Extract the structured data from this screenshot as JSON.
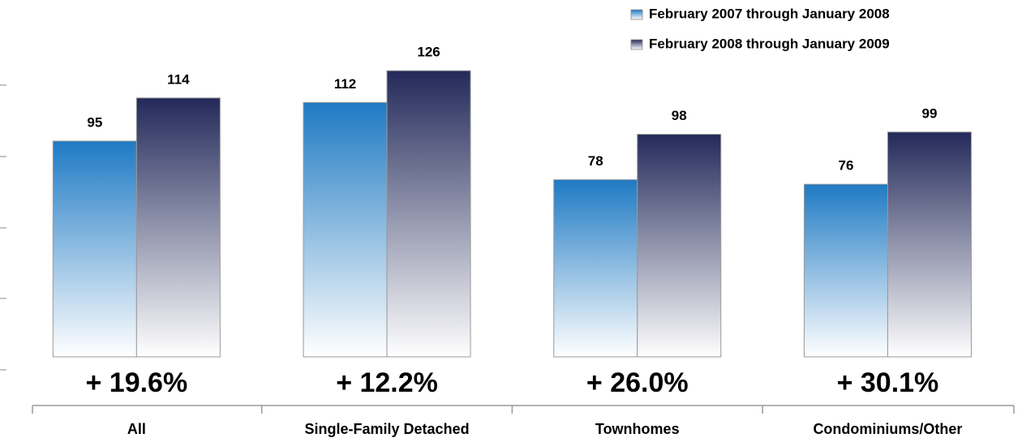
{
  "chart_data": {
    "type": "bar",
    "categories": [
      "All",
      "Single-Family Detached",
      "Townhomes",
      "Condominiums/Other"
    ],
    "series": [
      {
        "name": "February 2007 through January 2008",
        "color": "#1f7ac4",
        "values": [
          95,
          112,
          78,
          76
        ]
      },
      {
        "name": "February 2008 through January 2009",
        "color": "#232a5a",
        "values": [
          114,
          126,
          98,
          99
        ]
      }
    ],
    "annotations": [
      "+ 19.6%",
      "+ 12.2%",
      "+ 26.0%",
      "+ 30.1%"
    ],
    "ylim": [
      0,
      140
    ],
    "legend": "top-right"
  }
}
